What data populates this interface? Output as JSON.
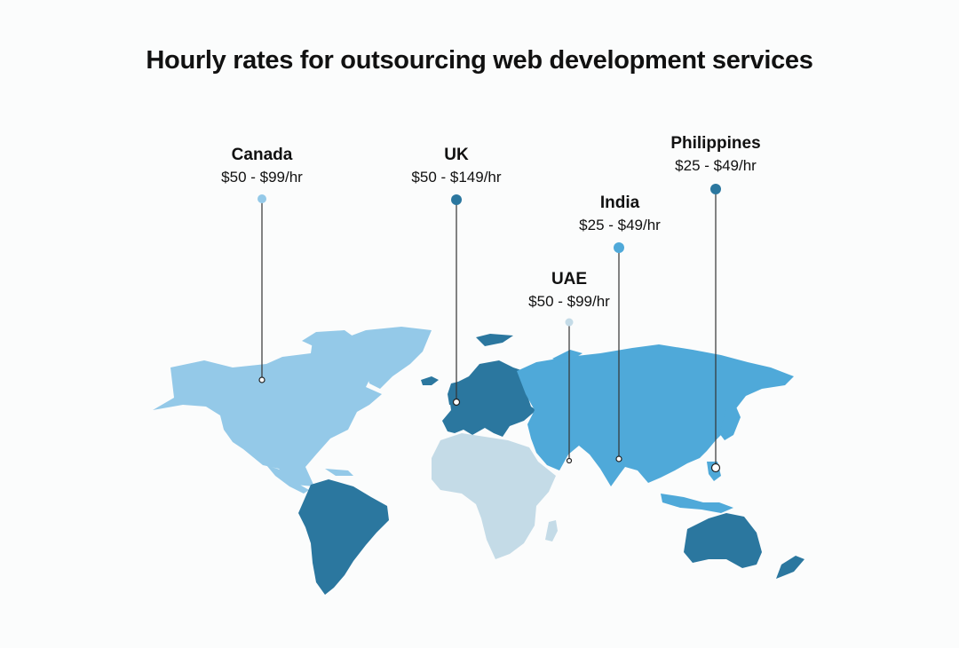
{
  "title": "Hourly rates for outsourcing web development services",
  "colors": {
    "light_blue": "#94c9e8",
    "mid_blue": "#4fa9d9",
    "dark_blue": "#2b779f",
    "pale_blue": "#c4dbe7",
    "pin_canada": "#94c9e8",
    "pin_uk": "#2b779f",
    "pin_india": "#4fa9d9",
    "pin_uae": "#c4dbe7",
    "pin_philippines": "#2b779f"
  },
  "markers": [
    {
      "id": "canada",
      "name": "Canada",
      "rate": "$50 - $99/hr"
    },
    {
      "id": "uk",
      "name": "UK",
      "rate": "$50 - $149/hr"
    },
    {
      "id": "philippines",
      "name": "Philippines",
      "rate": "$25 - $49/hr"
    },
    {
      "id": "india",
      "name": "India",
      "rate": "$25 - $49/hr"
    },
    {
      "id": "uae",
      "name": "UAE",
      "rate": "$50 - $99/hr"
    }
  ]
}
